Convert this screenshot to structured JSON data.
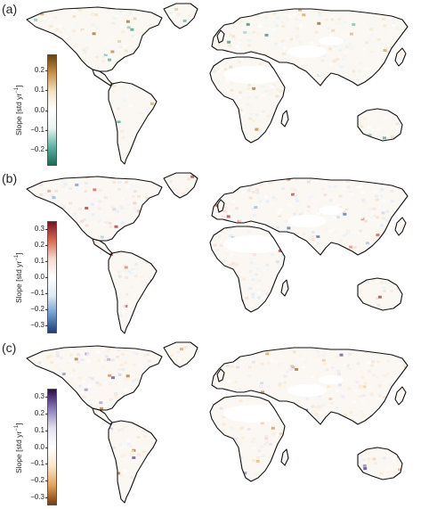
{
  "panels": [
    {
      "id": "a",
      "label": "(a)",
      "ylabel": "Slope [std yr",
      "ylabel_sup": "−1",
      "ylabel_end": "]",
      "ticks": [
        "0.2",
        "0.1",
        "0.0",
        "−0.1",
        "−0.2"
      ],
      "tick_values": [
        0.2,
        0.1,
        0.0,
        -0.1,
        -0.2
      ],
      "range": [
        -0.28,
        0.28
      ],
      "colormap": [
        "#1b6b5a",
        "#5fb3a4",
        "#e9f3f0",
        "#ffffff",
        "#f2e3c6",
        "#c9944a",
        "#6b4310"
      ]
    },
    {
      "id": "b",
      "label": "(b)",
      "ylabel": "Slope [std yr",
      "ylabel_sup": "−1",
      "ylabel_end": "]",
      "ticks": [
        "0.3",
        "0.2",
        "0.1",
        "0.0",
        "−0.1",
        "−0.2",
        "−0.3"
      ],
      "tick_values": [
        0.3,
        0.2,
        0.1,
        0.0,
        -0.1,
        -0.2,
        -0.3
      ],
      "range": [
        -0.35,
        0.35
      ],
      "colormap": [
        "#1d3f75",
        "#6e9ccf",
        "#dfe9f5",
        "#ffffff",
        "#f6d9cf",
        "#d66a53",
        "#7d1226"
      ]
    },
    {
      "id": "c",
      "label": "(c)",
      "ylabel": "Slope [std yr",
      "ylabel_sup": "−1",
      "ylabel_end": "]",
      "ticks": [
        "0.3",
        "0.2",
        "0.1",
        "0.0",
        "−0.1",
        "−0.2",
        "−0.3"
      ],
      "tick_values": [
        0.3,
        0.2,
        0.1,
        0.0,
        -0.1,
        -0.2,
        -0.3
      ],
      "range": [
        -0.35,
        0.35
      ],
      "colormap": [
        "#7a3d08",
        "#e3a35a",
        "#fbe6cc",
        "#ffffff",
        "#e3e0ef",
        "#8a7bb9",
        "#2d0a4e"
      ]
    }
  ]
}
